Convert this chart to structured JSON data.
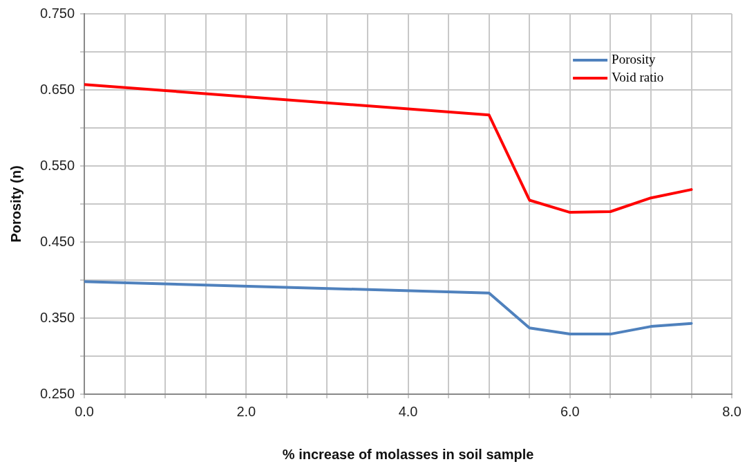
{
  "chart_data": {
    "type": "line",
    "xlabel": "% increase of molasses in soil sample",
    "ylabel": "Porosity (n)",
    "series": [
      {
        "name": "Porosity",
        "color": "#4f81bd",
        "x": [
          0,
          5,
          5.5,
          6,
          6.5,
          7,
          7.5
        ],
        "values": [
          0.398,
          0.383,
          0.337,
          0.329,
          0.329,
          0.339,
          0.343
        ]
      },
      {
        "name": "Void ratio",
        "color": "#ff0000",
        "x": [
          0,
          5,
          5.5,
          6,
          6.5,
          7,
          7.5
        ],
        "values": [
          0.657,
          0.617,
          0.505,
          0.489,
          0.49,
          0.508,
          0.519
        ]
      }
    ],
    "xlim": [
      0,
      8
    ],
    "xticks": [
      {
        "value": 0,
        "label": "0.0"
      },
      {
        "value": 0.5,
        "label": null
      },
      {
        "value": 1,
        "label": null
      },
      {
        "value": 1.5,
        "label": null
      },
      {
        "value": 2,
        "label": "2.0"
      },
      {
        "value": 2.5,
        "label": null
      },
      {
        "value": 3,
        "label": null
      },
      {
        "value": 3.5,
        "label": null
      },
      {
        "value": 4,
        "label": "4.0"
      },
      {
        "value": 4.5,
        "label": null
      },
      {
        "value": 5,
        "label": null
      },
      {
        "value": 5.5,
        "label": null
      },
      {
        "value": 6,
        "label": "6.0"
      },
      {
        "value": 6.5,
        "label": null
      },
      {
        "value": 7,
        "label": null
      },
      {
        "value": 7.5,
        "label": null
      },
      {
        "value": 8,
        "label": "8.0"
      }
    ],
    "ylim": [
      0.25,
      0.75
    ],
    "yticks": [
      {
        "value": 0.25,
        "label": "0.250"
      },
      {
        "value": 0.3,
        "label": null
      },
      {
        "value": 0.35,
        "label": "0.350"
      },
      {
        "value": 0.4,
        "label": null
      },
      {
        "value": 0.45,
        "label": "0.450"
      },
      {
        "value": 0.5,
        "label": null
      },
      {
        "value": 0.55,
        "label": "0.550"
      },
      {
        "value": 0.6,
        "label": null
      },
      {
        "value": 0.65,
        "label": "0.650"
      },
      {
        "value": 0.7,
        "label": null
      },
      {
        "value": 0.75,
        "label": "0.750"
      }
    ],
    "grid": true,
    "legend": "top right",
    "marker": "none",
    "line_style": "solid"
  }
}
